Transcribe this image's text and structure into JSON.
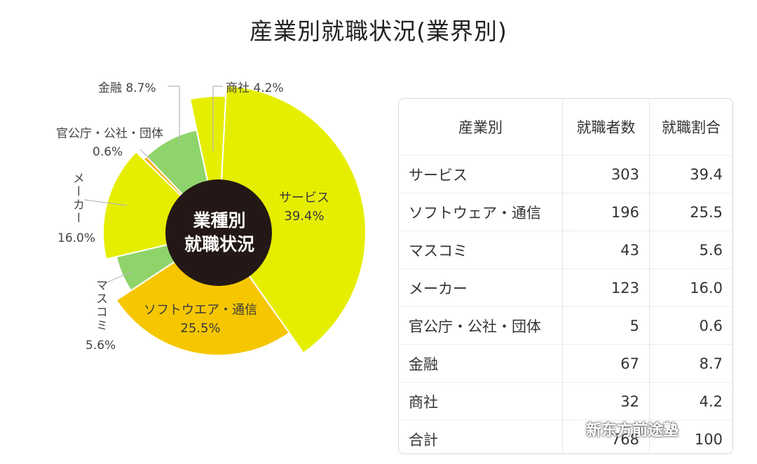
{
  "chart_data": [
    {
      "type": "pie",
      "title": "産業別就職状況(業界別)",
      "center_label": [
        "業種別",
        "就職状況"
      ],
      "slices": [
        {
          "name": "サービス",
          "value": 39.4,
          "display": "39.4%",
          "color": "#e6ee00"
        },
        {
          "name": "ソフトウエア・通信",
          "value": 25.5,
          "display": "25.5%",
          "color": "#f6c700"
        },
        {
          "name": "マスコミ",
          "value": 5.6,
          "display": "5.6%",
          "color": "#8fd46a"
        },
        {
          "name": "メーカー",
          "value": 16.0,
          "display": "16.0%",
          "color": "#e6ee00"
        },
        {
          "name": "官公庁・公社・団体",
          "value": 0.6,
          "display": "0.6%",
          "color": "#f6b400"
        },
        {
          "name": "金融",
          "value": 8.7,
          "display": "8.7%",
          "color": "#8fd46a"
        },
        {
          "name": "商社",
          "value": 4.2,
          "display": "4.2%",
          "color": "#e6ee00"
        }
      ]
    },
    {
      "type": "table",
      "columns": [
        "産業別",
        "就職者数",
        "就職割合"
      ],
      "rows": [
        [
          "サービス",
          "303",
          "39.4"
        ],
        [
          "ソフトウェア・通信",
          "196",
          "25.5"
        ],
        [
          "マスコミ",
          "43",
          "5.6"
        ],
        [
          "メーカー",
          "123",
          "16.0"
        ],
        [
          "官公庁・公社・団体",
          "5",
          "0.6"
        ],
        [
          "金融",
          "67",
          "8.7"
        ],
        [
          "商社",
          "32",
          "4.2"
        ],
        [
          "合計",
          "768",
          "100"
        ]
      ]
    }
  ],
  "watermark": "新东方前途塾",
  "labels": {
    "kinyu": "金融 8.7%",
    "shosha": "商社 4.2%",
    "kankocho": "官公庁・公社・団体",
    "kankocho_pct": "0.6%",
    "maker": "メーカー",
    "maker_pct": "16.0%",
    "masukomi": "マスコミ",
    "masukomi_pct": "5.6%",
    "service": "サービス",
    "service_pct": "39.4%",
    "software": "ソフトウエア・通信",
    "software_pct": "25.5%"
  }
}
